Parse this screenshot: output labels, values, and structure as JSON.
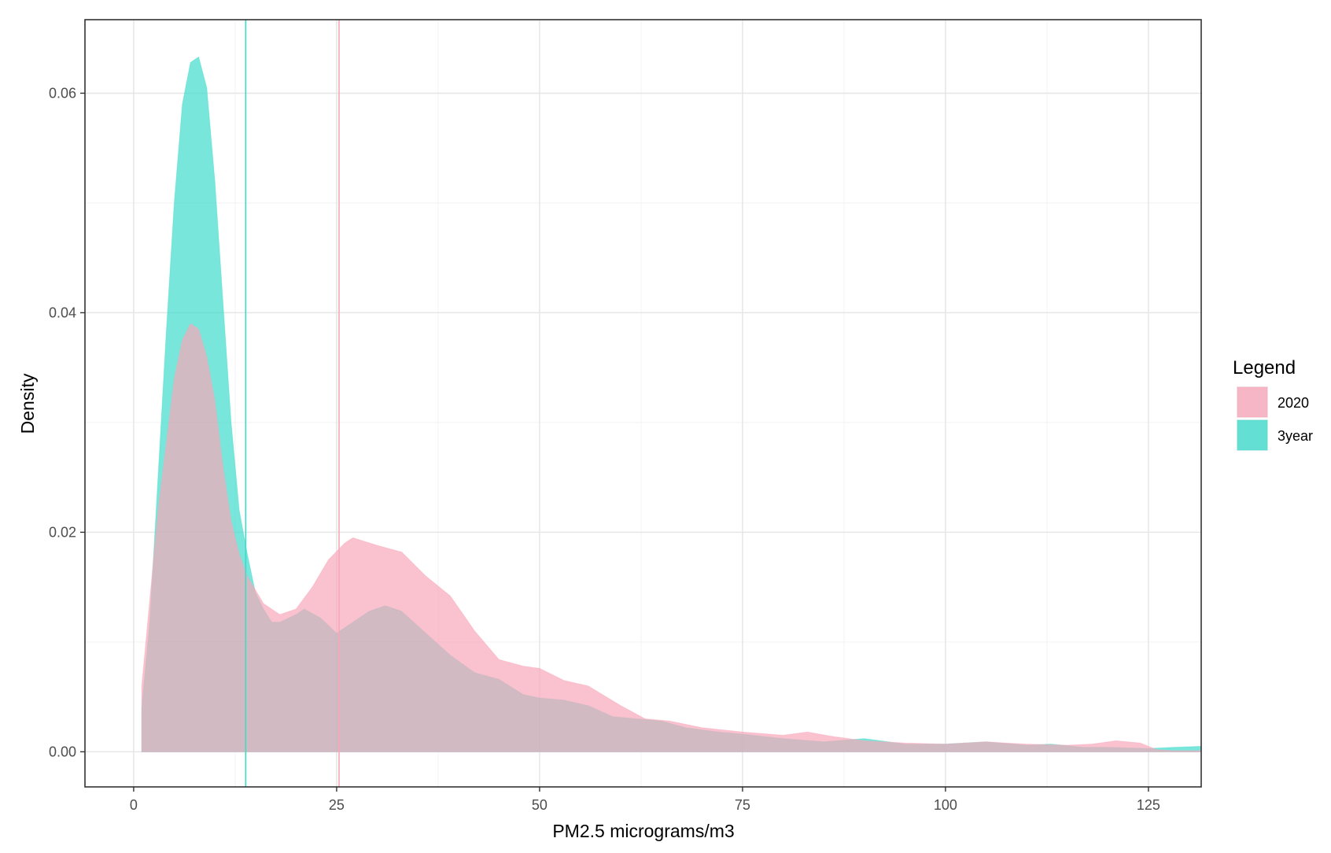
{
  "chart_data": {
    "type": "area",
    "subtype": "density",
    "title": "",
    "xlabel": "PM2.5 micrograms/m3",
    "ylabel": "Density",
    "xlim": [
      -6,
      131.5
    ],
    "ylim": [
      -0.0032,
      0.0667
    ],
    "x_ticks": [
      0,
      25,
      50,
      75,
      100,
      125
    ],
    "x_tick_labels": [
      "0",
      "25",
      "50",
      "75",
      "100",
      "125"
    ],
    "y_ticks": [
      0.0,
      0.02,
      0.04,
      0.06
    ],
    "y_tick_labels": [
      "0.00",
      "0.02",
      "0.04",
      "0.06"
    ],
    "grid": true,
    "legend": {
      "title": "Legend",
      "position": "right"
    },
    "series": [
      {
        "name": "2020",
        "color": "#F8A6B9",
        "mean_line": 25.3,
        "points": [
          [
            1,
            0
          ],
          [
            1,
            0.006
          ],
          [
            2,
            0.014
          ],
          [
            3,
            0.022
          ],
          [
            4,
            0.028
          ],
          [
            5,
            0.034
          ],
          [
            6,
            0.0375
          ],
          [
            7,
            0.039
          ],
          [
            8,
            0.0385
          ],
          [
            9,
            0.036
          ],
          [
            10,
            0.032
          ],
          [
            11,
            0.026
          ],
          [
            12,
            0.021
          ],
          [
            13,
            0.018
          ],
          [
            14,
            0.016
          ],
          [
            16,
            0.0135
          ],
          [
            18,
            0.0125
          ],
          [
            20,
            0.013
          ],
          [
            22,
            0.015
          ],
          [
            24,
            0.0175
          ],
          [
            26,
            0.019
          ],
          [
            27,
            0.0195
          ],
          [
            30,
            0.0188
          ],
          [
            33,
            0.0182
          ],
          [
            36,
            0.016
          ],
          [
            39,
            0.0142
          ],
          [
            42,
            0.011
          ],
          [
            45,
            0.0084
          ],
          [
            48,
            0.0078
          ],
          [
            50,
            0.0076
          ],
          [
            53,
            0.0065
          ],
          [
            56,
            0.006
          ],
          [
            60,
            0.0042
          ],
          [
            63,
            0.003
          ],
          [
            66,
            0.0028
          ],
          [
            70,
            0.0022
          ],
          [
            75,
            0.0018
          ],
          [
            80,
            0.0015
          ],
          [
            83,
            0.0018
          ],
          [
            86,
            0.0014
          ],
          [
            90,
            0.001
          ],
          [
            95,
            0.0008
          ],
          [
            100,
            0.0007
          ],
          [
            105,
            0.0009
          ],
          [
            110,
            0.0007
          ],
          [
            115,
            0.0006
          ],
          [
            118,
            0.0007
          ],
          [
            121,
            0.001
          ],
          [
            124,
            0.0008
          ],
          [
            126,
            0.0002
          ],
          [
            128,
            0.0001
          ],
          [
            131.5,
            0.0001
          ],
          [
            131.5,
            0
          ]
        ]
      },
      {
        "name": "3year",
        "color": "#3EDBCB",
        "mean_line": 13.8,
        "points": [
          [
            1,
            0
          ],
          [
            1,
            0.004
          ],
          [
            2,
            0.012
          ],
          [
            3,
            0.025
          ],
          [
            4,
            0.038
          ],
          [
            5,
            0.05
          ],
          [
            6,
            0.059
          ],
          [
            7,
            0.0628
          ],
          [
            8,
            0.0633
          ],
          [
            9,
            0.0605
          ],
          [
            10,
            0.052
          ],
          [
            11,
            0.041
          ],
          [
            12,
            0.03
          ],
          [
            13,
            0.022
          ],
          [
            14,
            0.018
          ],
          [
            15,
            0.0145
          ],
          [
            16,
            0.013
          ],
          [
            17,
            0.0118
          ],
          [
            18,
            0.0118
          ],
          [
            20,
            0.0125
          ],
          [
            21,
            0.013
          ],
          [
            23,
            0.0122
          ],
          [
            25,
            0.0108
          ],
          [
            27,
            0.0118
          ],
          [
            29,
            0.0128
          ],
          [
            31,
            0.0133
          ],
          [
            33,
            0.0128
          ],
          [
            36,
            0.0108
          ],
          [
            39,
            0.0088
          ],
          [
            42,
            0.0072
          ],
          [
            45,
            0.0066
          ],
          [
            48,
            0.0052
          ],
          [
            50,
            0.0049
          ],
          [
            53,
            0.0047
          ],
          [
            56,
            0.0042
          ],
          [
            59,
            0.0032
          ],
          [
            62,
            0.003
          ],
          [
            65,
            0.0028
          ],
          [
            68,
            0.0022
          ],
          [
            72,
            0.0018
          ],
          [
            75,
            0.0016
          ],
          [
            80,
            0.0012
          ],
          [
            85,
            0.0009
          ],
          [
            90,
            0.0012
          ],
          [
            95,
            0.0007
          ],
          [
            100,
            0.0007
          ],
          [
            105,
            0.0009
          ],
          [
            110,
            0.0006
          ],
          [
            113,
            0.0007
          ],
          [
            117,
            0.0004
          ],
          [
            120,
            0.0004
          ],
          [
            125,
            0.0003
          ],
          [
            128,
            0.0004
          ],
          [
            131.5,
            0.0005
          ],
          [
            131.5,
            0
          ]
        ]
      }
    ]
  }
}
